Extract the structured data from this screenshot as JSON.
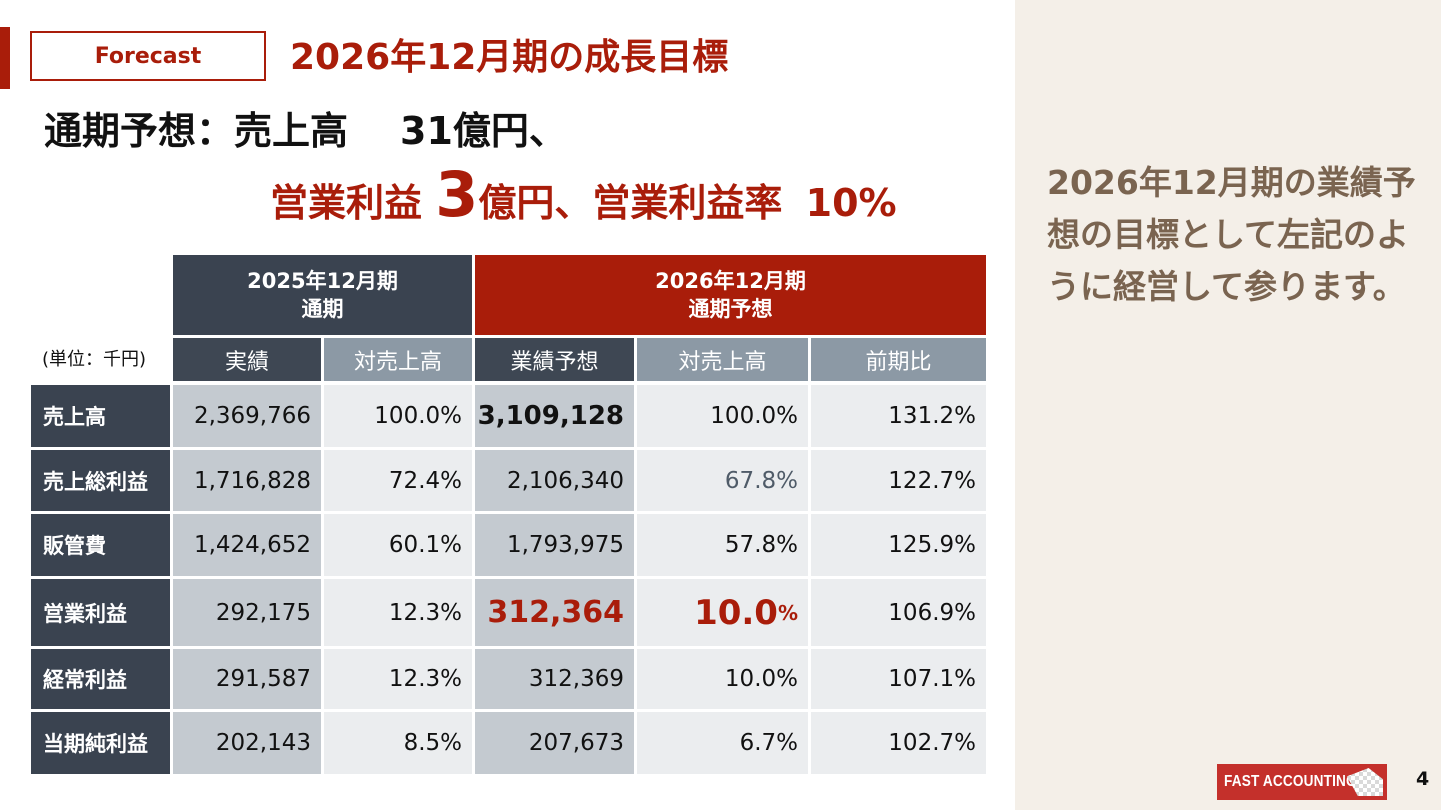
{
  "slide": {
    "badge": "Forecast",
    "title": "2026年12月期の成長目標",
    "headline1_prefix": "通期予想：売上高",
    "headline1_value": "31億円、",
    "headline2_a": "営業利益",
    "headline2_big": "3",
    "headline2_b": "億円、営業利益率",
    "headline2_pct": "10%",
    "sidebar_text": "2026年12月期の業績予想の目標として左記のように経営して参ります。",
    "page_number": "4"
  },
  "logo": {
    "text": "FAST ACCOUNTING"
  },
  "table": {
    "unit": "(単位：千円)",
    "group_2025_line1": "2025年12月期",
    "group_2025_line2": "通期",
    "group_2026_line1": "2026年12月期",
    "group_2026_line2": "通期予想",
    "sub_headers": [
      "実績",
      "対売上高",
      "業績予想",
      "対売上高",
      "前期比"
    ],
    "rows": [
      {
        "label": "売上高",
        "actual": "2,369,766",
        "actual_ratio": "100.0%",
        "forecast": "3,109,128",
        "forecast_ratio": "100.0%",
        "yoy": "131.2%"
      },
      {
        "label": "売上総利益",
        "actual": "1,716,828",
        "actual_ratio": "72.4%",
        "forecast": "2,106,340",
        "forecast_ratio": "67.8%",
        "yoy": "122.7%"
      },
      {
        "label": "販管費",
        "actual": "1,424,652",
        "actual_ratio": "60.1%",
        "forecast": "1,793,975",
        "forecast_ratio": "57.8%",
        "yoy": "125.9%"
      },
      {
        "label": "営業利益",
        "actual": "292,175",
        "actual_ratio": "12.3%",
        "forecast": "312,364",
        "forecast_ratio_num": "10.0",
        "forecast_ratio_unit": "%",
        "yoy": "106.9%"
      },
      {
        "label": "経常利益",
        "actual": "291,587",
        "actual_ratio": "12.3%",
        "forecast": "312,369",
        "forecast_ratio": "10.0%",
        "yoy": "107.1%"
      },
      {
        "label": "当期純利益",
        "actual": "202,143",
        "actual_ratio": "8.5%",
        "forecast": "207,673",
        "forecast_ratio": "6.7%",
        "yoy": "102.7%"
      }
    ]
  },
  "colors": {
    "brand_red": "#a91d0a",
    "header_dark": "#3a4350",
    "sidebar_bg": "#f4efe8",
    "sidebar_text": "#7a6450"
  }
}
